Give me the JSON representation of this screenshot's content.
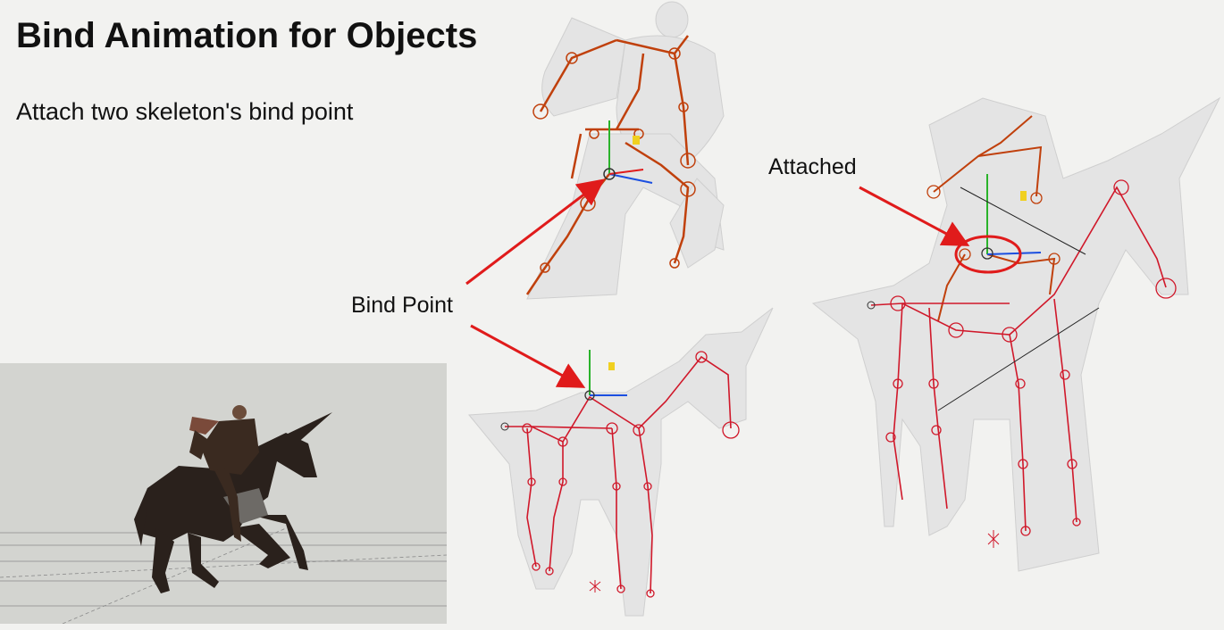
{
  "slide": {
    "title": "Bind Animation for Objects",
    "subtitle": "Attach two skeleton's bind point"
  },
  "callouts": {
    "bind_point": "Bind Point",
    "attached": "Attached"
  },
  "colors": {
    "background": "#f2f2f0",
    "arrow": "#e01b1b",
    "bone_orange": "#c0400c",
    "bone_red": "#d0182a",
    "mesh": "#e6e6e6",
    "render_bg": "#d3d4d0"
  }
}
